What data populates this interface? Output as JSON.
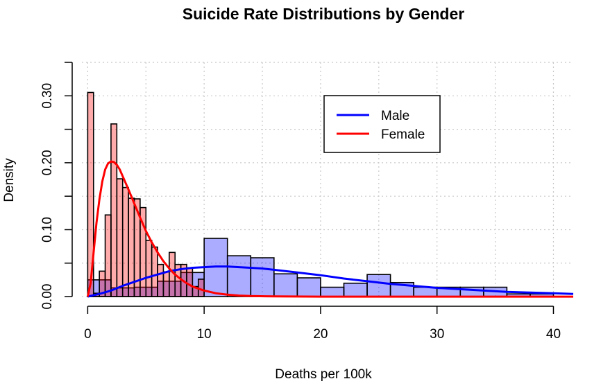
{
  "chart_data": {
    "type": "histogram",
    "title": "Suicide Rate Distributions by Gender",
    "xlabel": "Deaths per 100k",
    "ylabel": "Density",
    "xlim": [
      -0.5,
      41.7
    ],
    "ylim": [
      -0.002,
      0.35
    ],
    "x_ticks": [
      0,
      10,
      20,
      30,
      40
    ],
    "x_tick_labels": [
      "0",
      "10",
      "20",
      "30",
      "40"
    ],
    "y_ticks": [
      0,
      0.1,
      0.2,
      0.3
    ],
    "y_tick_labels": [
      "0.00",
      "0.10",
      "0.20",
      "0.30"
    ],
    "grid": true,
    "legend_position": "top-right",
    "series": [
      {
        "name": "Male",
        "color": "#0000ff",
        "fill": "rgba(0,0,255,0.33)",
        "bin_width": 2,
        "bins": [
          {
            "x0": 0,
            "x1": 2,
            "density": 0.025
          },
          {
            "x0": 2,
            "x1": 4,
            "density": 0.013
          },
          {
            "x0": 4,
            "x1": 6,
            "density": 0.014
          },
          {
            "x0": 6,
            "x1": 8,
            "density": 0.023
          },
          {
            "x0": 8,
            "x1": 10,
            "density": 0.036
          },
          {
            "x0": 10,
            "x1": 12,
            "density": 0.087
          },
          {
            "x0": 12,
            "x1": 14,
            "density": 0.061
          },
          {
            "x0": 14,
            "x1": 16,
            "density": 0.058
          },
          {
            "x0": 16,
            "x1": 18,
            "density": 0.034
          },
          {
            "x0": 18,
            "x1": 20,
            "density": 0.028
          },
          {
            "x0": 20,
            "x1": 22,
            "density": 0.014
          },
          {
            "x0": 22,
            "x1": 24,
            "density": 0.02
          },
          {
            "x0": 24,
            "x1": 26,
            "density": 0.033
          },
          {
            "x0": 26,
            "x1": 28,
            "density": 0.021
          },
          {
            "x0": 28,
            "x1": 30,
            "density": 0.014
          },
          {
            "x0": 30,
            "x1": 32,
            "density": 0.014
          },
          {
            "x0": 32,
            "x1": 34,
            "density": 0.014
          },
          {
            "x0": 34,
            "x1": 36,
            "density": 0.014
          },
          {
            "x0": 36,
            "x1": 38,
            "density": 0.004
          },
          {
            "x0": 38,
            "x1": 40,
            "density": 0.004
          }
        ],
        "curve": {
          "x": [
            0,
            1,
            2,
            3,
            4,
            5,
            6,
            7,
            8,
            9,
            10,
            11,
            12,
            13,
            14,
            15,
            16,
            18,
            20,
            22,
            24,
            26,
            28,
            30,
            32,
            34,
            36,
            38,
            40,
            41.7
          ],
          "y": [
            0.0,
            0.004,
            0.009,
            0.016,
            0.022,
            0.028,
            0.033,
            0.038,
            0.041,
            0.043,
            0.044,
            0.045,
            0.045,
            0.044,
            0.043,
            0.042,
            0.04,
            0.036,
            0.032,
            0.027,
            0.023,
            0.019,
            0.016,
            0.013,
            0.011,
            0.009,
            0.007,
            0.006,
            0.005,
            0.004
          ]
        }
      },
      {
        "name": "Female",
        "color": "#ff0000",
        "fill": "rgba(255,0,0,0.33)",
        "bin_width": 0.5,
        "bins": [
          {
            "x0": 0,
            "x1": 0.5,
            "density": 0.305
          },
          {
            "x0": 0.5,
            "x1": 1,
            "density": 0.005
          },
          {
            "x0": 1,
            "x1": 1.5,
            "density": 0.038
          },
          {
            "x0": 1.5,
            "x1": 2,
            "density": 0.122
          },
          {
            "x0": 2,
            "x1": 2.5,
            "density": 0.258
          },
          {
            "x0": 2.5,
            "x1": 3,
            "density": 0.176
          },
          {
            "x0": 3,
            "x1": 3.5,
            "density": 0.163
          },
          {
            "x0": 3.5,
            "x1": 4,
            "density": 0.147
          },
          {
            "x0": 4,
            "x1": 4.5,
            "density": 0.146
          },
          {
            "x0": 4.5,
            "x1": 5,
            "density": 0.133
          },
          {
            "x0": 5,
            "x1": 5.5,
            "density": 0.084
          },
          {
            "x0": 5.5,
            "x1": 6,
            "density": 0.074
          },
          {
            "x0": 6,
            "x1": 6.5,
            "density": 0.048
          },
          {
            "x0": 6.5,
            "x1": 7,
            "density": 0.037
          },
          {
            "x0": 7,
            "x1": 7.5,
            "density": 0.066
          },
          {
            "x0": 7.5,
            "x1": 8,
            "density": 0.048
          },
          {
            "x0": 8,
            "x1": 8.5,
            "density": 0.048
          },
          {
            "x0": 8.5,
            "x1": 9,
            "density": 0.043
          },
          {
            "x0": 9,
            "x1": 9.5,
            "density": 0.015
          },
          {
            "x0": 9.5,
            "x1": 10,
            "density": 0.026
          }
        ],
        "curve": {
          "x": [
            0,
            0.25,
            0.5,
            0.75,
            1,
            1.25,
            1.5,
            1.75,
            2,
            2.25,
            2.5,
            2.75,
            3,
            3.5,
            4,
            4.5,
            5,
            5.5,
            6,
            6.5,
            7,
            7.5,
            8,
            8.5,
            9,
            10,
            11,
            12,
            13,
            14,
            16,
            20,
            30,
            41.7
          ],
          "y": [
            0.0,
            0.02,
            0.065,
            0.11,
            0.145,
            0.172,
            0.19,
            0.199,
            0.202,
            0.201,
            0.197,
            0.19,
            0.18,
            0.16,
            0.139,
            0.118,
            0.098,
            0.081,
            0.066,
            0.053,
            0.042,
            0.033,
            0.026,
            0.02,
            0.015,
            0.009,
            0.005,
            0.003,
            0.0015,
            0.0008,
            0.0003,
            0.0,
            0.0,
            0.0
          ]
        }
      }
    ]
  }
}
